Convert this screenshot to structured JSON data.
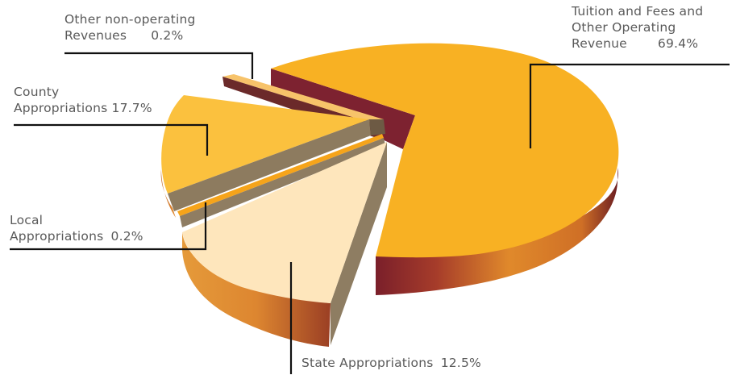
{
  "chart_data": {
    "type": "pie",
    "title": "",
    "slices": [
      {
        "label_lines": [
          "Tuition and Fees and",
          "Other Operating",
          "Revenue"
        ],
        "value": 69.4,
        "value_label": "69.4%",
        "color": "#f9b224"
      },
      {
        "label_lines": [
          "State Appropriations"
        ],
        "value": 12.5,
        "value_label": "12.5%",
        "color": "#fee7bd"
      },
      {
        "label_lines": [
          "County",
          "Appropriations"
        ],
        "value": 17.7,
        "value_label": "17.7%",
        "color": "#fbc240"
      },
      {
        "label_lines": [
          "Local",
          "Appropriations"
        ],
        "value": 0.2,
        "value_label": "0.2%",
        "color": "#f6a51b"
      },
      {
        "label_lines": [
          "Other non-operating",
          "Revenues"
        ],
        "value": 0.2,
        "value_label": "0.2%",
        "color": "#7b2530"
      }
    ],
    "legend": "none"
  }
}
